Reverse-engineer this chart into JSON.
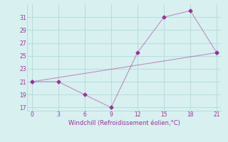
{
  "line1_x": [
    0,
    3,
    6,
    9,
    12,
    15,
    18,
    21
  ],
  "line1_y": [
    21,
    21,
    19,
    17,
    25.5,
    31,
    32,
    25.5
  ],
  "line2_x": [
    0,
    21
  ],
  "line2_y": [
    21,
    25.5
  ],
  "color": "#993399",
  "xlabel": "Windchill (Refroidissement éolien,°C)",
  "xlim": [
    -0.5,
    21.5
  ],
  "ylim": [
    16.5,
    33
  ],
  "xticks": [
    0,
    3,
    6,
    9,
    12,
    15,
    18,
    21
  ],
  "yticks": [
    17,
    19,
    21,
    23,
    25,
    27,
    29,
    31
  ],
  "bg_color": "#d8f0f0",
  "grid_color": "#b8dede",
  "marker": "D",
  "markersize": 2.5,
  "linewidth": 0.8
}
